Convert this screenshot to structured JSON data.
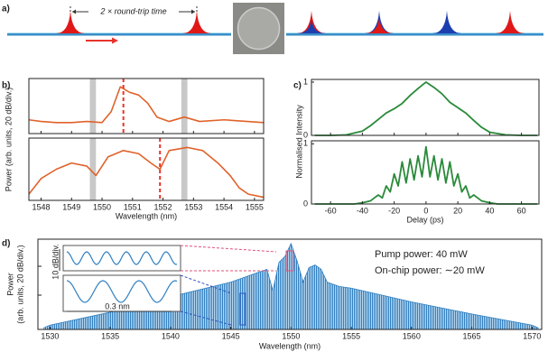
{
  "chart_data": [
    {
      "type": "schematic",
      "label": "a)",
      "annotation": "2 × round-trip time"
    },
    {
      "type": "line",
      "label": "b)",
      "xlabel": "Wavelength (nm)",
      "ylabel": "Power (arb. units, 20 dB/div.)",
      "xlim": [
        1547.6,
        1555.3
      ],
      "xticks": [
        1548,
        1549,
        1550,
        1551,
        1552,
        1553,
        1554,
        1555
      ],
      "subplots": [
        {
          "x": [
            1547.6,
            1548,
            1548.5,
            1549,
            1549.5,
            1550,
            1550.3,
            1550.6,
            1550.9,
            1551.2,
            1551.5,
            1551.8,
            1552.2,
            1552.7,
            1553.2,
            1554,
            1555.3
          ],
          "values": [
            0.25,
            0.22,
            0.2,
            0.2,
            0.22,
            0.2,
            0.4,
            0.85,
            0.75,
            0.7,
            0.55,
            0.3,
            0.22,
            0.3,
            0.22,
            0.25,
            0.2
          ],
          "color": "#e0622a",
          "ylim": [
            0,
            1
          ],
          "marker_x": 1550.7,
          "bands": [
            [
              1549.6,
              1549.8
            ],
            [
              1552.6,
              1552.8
            ]
          ]
        },
        {
          "x": [
            1547.6,
            1548,
            1548.5,
            1549,
            1549.5,
            1549.8,
            1550.2,
            1550.7,
            1551.2,
            1551.6,
            1551.9,
            1552.2,
            1552.8,
            1553.3,
            1553.8,
            1554.2,
            1554.5,
            1554.8,
            1555.3
          ],
          "values": [
            0.1,
            0.35,
            0.5,
            0.6,
            0.55,
            0.4,
            0.7,
            0.8,
            0.75,
            0.6,
            0.5,
            0.8,
            0.85,
            0.8,
            0.6,
            0.4,
            0.2,
            0.1,
            0.05
          ],
          "color": "#e0622a",
          "ylim": [
            0,
            1
          ],
          "marker_x": 1551.9,
          "bands": [
            [
              1549.6,
              1549.8
            ],
            [
              1552.6,
              1552.8
            ]
          ]
        }
      ]
    },
    {
      "type": "line",
      "label": "c)",
      "xlabel": "Delay (ps)",
      "ylabel": "Normalised Intensity",
      "xlim": [
        -72,
        71
      ],
      "xticks": [
        -60,
        -40,
        -20,
        0,
        20,
        40,
        60
      ],
      "subplots": [
        {
          "x": [
            -70,
            -60,
            -50,
            -40,
            -35,
            -30,
            -25,
            -20,
            -15,
            -10,
            -5,
            0,
            5,
            10,
            15,
            20,
            25,
            30,
            35,
            40,
            50,
            60,
            70
          ],
          "values": [
            0,
            0,
            0.01,
            0.08,
            0.18,
            0.3,
            0.42,
            0.5,
            0.6,
            0.75,
            0.88,
            1,
            0.9,
            0.78,
            0.62,
            0.52,
            0.42,
            0.28,
            0.15,
            0.06,
            0.01,
            0,
            0
          ],
          "color": "#2a8a3a",
          "ylim": [
            0,
            1.05
          ],
          "yticks": [
            0,
            1
          ]
        },
        {
          "x": [
            -70,
            -45,
            -40,
            -35,
            -32.5,
            -30,
            -27.5,
            -25,
            -22.5,
            -20,
            -17.5,
            -15,
            -12.5,
            -10,
            -7.5,
            -5,
            -2.5,
            0,
            2.5,
            5,
            7.5,
            10,
            12.5,
            15,
            17.5,
            20,
            22.5,
            25,
            27.5,
            30,
            32.5,
            35,
            40,
            45,
            70
          ],
          "values": [
            0,
            0,
            0.02,
            0.05,
            0.1,
            0.15,
            0.1,
            0.3,
            0.2,
            0.5,
            0.3,
            0.7,
            0.35,
            0.75,
            0.4,
            0.8,
            0.45,
            0.95,
            0.45,
            0.8,
            0.4,
            0.75,
            0.35,
            0.7,
            0.3,
            0.5,
            0.2,
            0.3,
            0.1,
            0.15,
            0.1,
            0.05,
            0.02,
            0,
            0
          ],
          "color": "#2a8a3a",
          "ylim": [
            0,
            1.05
          ],
          "yticks": [
            0,
            1
          ]
        }
      ]
    },
    {
      "type": "area",
      "label": "d)",
      "xlabel": "Wavelength (nm)",
      "ylabel": [
        "Power",
        "(arb. units, 20 dB/div.)"
      ],
      "xlim": [
        1529,
        1570.8
      ],
      "xticks": [
        1530,
        1535,
        1540,
        1545,
        1550,
        1555,
        1560,
        1565,
        1570
      ],
      "x": [
        1529.5,
        1530,
        1535,
        1540,
        1545,
        1546,
        1547,
        1548,
        1548.5,
        1549,
        1549.5,
        1550,
        1550.5,
        1551,
        1551.5,
        1552,
        1552.5,
        1553,
        1554,
        1555,
        1560,
        1565,
        1570,
        1570.5
      ],
      "values": [
        0.02,
        0.05,
        0.2,
        0.38,
        0.55,
        0.6,
        0.65,
        0.7,
        0.45,
        0.78,
        0.85,
        1,
        0.8,
        0.55,
        0.72,
        0.75,
        0.7,
        0.55,
        0.5,
        0.48,
        0.32,
        0.18,
        0.05,
        0.02
      ],
      "color": "#2f7fc0",
      "ylim": [
        0,
        1.05
      ],
      "annotations": [
        "Pump power: 40 mW",
        "On-chip power: ∼20 mW"
      ],
      "inset_labels": [
        "10 dB/div.",
        "0.3 nm"
      ]
    }
  ]
}
